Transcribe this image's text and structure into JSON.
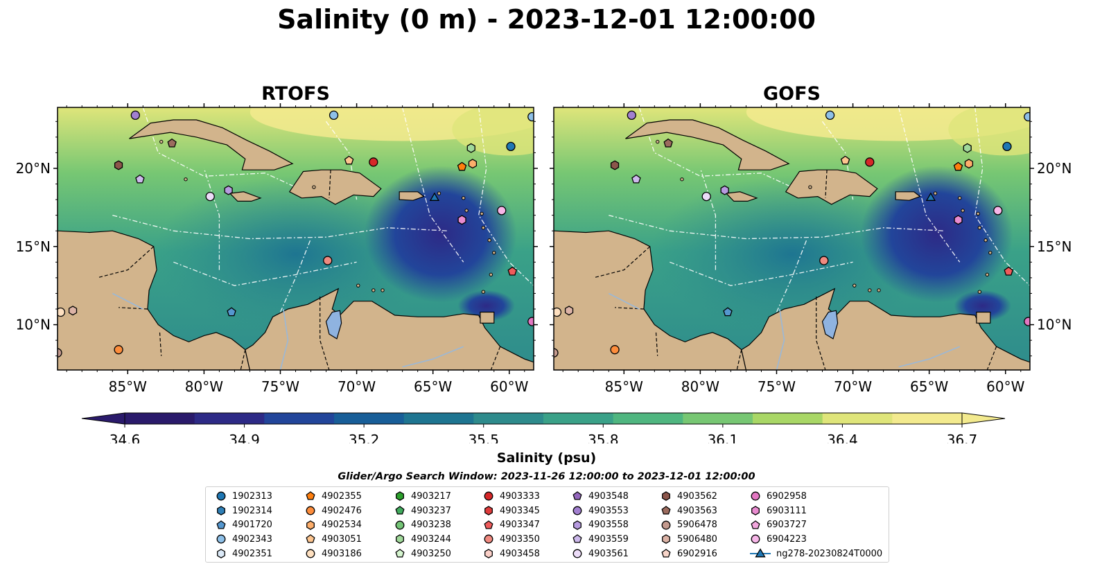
{
  "title": "Salinity (0 m) - 2023-12-01 12:00:00",
  "panels": [
    {
      "title": "RTOFS"
    },
    {
      "title": "GOFS"
    }
  ],
  "axes": {
    "x_ticks": [
      "85°W",
      "80°W",
      "75°W",
      "70°W",
      "65°W",
      "60°W"
    ],
    "y_ticks": [
      "20°N",
      "15°N",
      "10°N"
    ],
    "lon_range": [
      -89.6,
      -58.4
    ],
    "lat_range": [
      7.1,
      23.9
    ]
  },
  "colorbar": {
    "label": "Salinity (psu)",
    "min": 34.6,
    "max": 36.7,
    "extend": "both",
    "ticks": [
      "34.6",
      "34.9",
      "35.2",
      "35.5",
      "35.8",
      "36.1",
      "36.4",
      "36.7"
    ],
    "colors": [
      "#2a1a6b",
      "#2d2a86",
      "#22459a",
      "#185e98",
      "#1e7591",
      "#2e8b8c",
      "#3aa188",
      "#4fb680",
      "#77c773",
      "#a9d766",
      "#dfe57a",
      "#f3ea8e"
    ]
  },
  "search_window": "Glider/Argo Search Window: 2023-11-26 12:00:00 to 2023-12-01 12:00:00",
  "colors": {
    "land": "#d2b48c",
    "lake": "#8fb3e0",
    "ocean_low": "#2a1a6b",
    "ocean_high": "#f3ea8e"
  },
  "legend": [
    {
      "label": "1902313",
      "marker": "circle",
      "color": "#1f77b4"
    },
    {
      "label": "1902314",
      "marker": "hexagon",
      "color": "#2f7fb6"
    },
    {
      "label": "4901720",
      "marker": "pentagon",
      "color": "#5597cf"
    },
    {
      "label": "4902343",
      "marker": "circle",
      "color": "#8ec0e8"
    },
    {
      "label": "4902351",
      "marker": "hexagon",
      "color": "#dbe9f7"
    },
    {
      "label": "4902355",
      "marker": "pentagon",
      "color": "#ff7f0e"
    },
    {
      "label": "4902476",
      "marker": "circle",
      "color": "#fd8d3c"
    },
    {
      "label": "4902534",
      "marker": "hexagon",
      "color": "#fdae6b"
    },
    {
      "label": "4903051",
      "marker": "pentagon",
      "color": "#fdc58f"
    },
    {
      "label": "4903186",
      "marker": "circle",
      "color": "#fee0c0"
    },
    {
      "label": "4903217",
      "marker": "hexagon",
      "color": "#2ca02c"
    },
    {
      "label": "4903237",
      "marker": "pentagon",
      "color": "#41ab5d"
    },
    {
      "label": "4903238",
      "marker": "circle",
      "color": "#74c476"
    },
    {
      "label": "4903244",
      "marker": "hexagon",
      "color": "#a1d99b"
    },
    {
      "label": "4903250",
      "marker": "pentagon",
      "color": "#d5f5cf"
    },
    {
      "label": "4903333",
      "marker": "circle",
      "color": "#d62728"
    },
    {
      "label": "4903345",
      "marker": "hexagon",
      "color": "#e03c3c"
    },
    {
      "label": "4903347",
      "marker": "pentagon",
      "color": "#ef5b5b"
    },
    {
      "label": "4903350",
      "marker": "circle",
      "color": "#f08a80"
    },
    {
      "label": "4903458",
      "marker": "hexagon",
      "color": "#fbd0c8"
    },
    {
      "label": "4903548",
      "marker": "pentagon",
      "color": "#9467bd"
    },
    {
      "label": "4903553",
      "marker": "circle",
      "color": "#a27fd0"
    },
    {
      "label": "4903558",
      "marker": "hexagon",
      "color": "#b79be0"
    },
    {
      "label": "4903559",
      "marker": "pentagon",
      "color": "#cdb9ec"
    },
    {
      "label": "4903561",
      "marker": "circle",
      "color": "#ecdcf8"
    },
    {
      "label": "4903562",
      "marker": "hexagon",
      "color": "#8c564b"
    },
    {
      "label": "4903563",
      "marker": "pentagon",
      "color": "#9c6b5e"
    },
    {
      "label": "5906478",
      "marker": "circle",
      "color": "#c49a8e"
    },
    {
      "label": "5906480",
      "marker": "hexagon",
      "color": "#dcb3a6"
    },
    {
      "label": "6902916",
      "marker": "pentagon",
      "color": "#f7d4c8"
    },
    {
      "label": "6902958",
      "marker": "circle",
      "color": "#e377c2"
    },
    {
      "label": "6903111",
      "marker": "hexagon",
      "color": "#e98bd0"
    },
    {
      "label": "6903727",
      "marker": "pentagon",
      "color": "#f2a6dd"
    },
    {
      "label": "6904223",
      "marker": "circle",
      "color": "#f7b6e8"
    },
    {
      "label": "ng278-20230824T0000",
      "marker": "triangle-line",
      "color": "#1f77b4"
    }
  ],
  "markers": [
    {
      "lon": -84.5,
      "lat": 23.4,
      "marker": "circle",
      "color": "#a27fd0"
    },
    {
      "lon": -71.5,
      "lat": 23.4,
      "marker": "circle",
      "color": "#8ec0e8"
    },
    {
      "lon": -58.5,
      "lat": 23.3,
      "marker": "circle",
      "color": "#8ec0e8"
    },
    {
      "lon": -82.1,
      "lat": 21.6,
      "marker": "pentagon",
      "color": "#9c6b5e"
    },
    {
      "lon": -85.6,
      "lat": 20.2,
      "marker": "hexagon",
      "color": "#8c564b"
    },
    {
      "lon": -84.2,
      "lat": 19.3,
      "marker": "pentagon",
      "color": "#cdb9ec"
    },
    {
      "lon": -79.6,
      "lat": 18.2,
      "marker": "circle",
      "color": "#ecdcf8"
    },
    {
      "lon": -78.4,
      "lat": 18.6,
      "marker": "hexagon",
      "color": "#b79be0"
    },
    {
      "lon": -70.5,
      "lat": 20.5,
      "marker": "pentagon",
      "color": "#fdc58f"
    },
    {
      "lon": -68.9,
      "lat": 20.4,
      "marker": "circle",
      "color": "#d62728"
    },
    {
      "lon": -62.5,
      "lat": 21.3,
      "marker": "hexagon",
      "color": "#a1d99b"
    },
    {
      "lon": -63.1,
      "lat": 20.1,
      "marker": "pentagon",
      "color": "#ff7f0e"
    },
    {
      "lon": -62.4,
      "lat": 20.3,
      "marker": "hexagon",
      "color": "#fdae6b"
    },
    {
      "lon": -59.9,
      "lat": 21.4,
      "marker": "circle",
      "color": "#1f77b4"
    },
    {
      "lon": -60.5,
      "lat": 17.3,
      "marker": "circle",
      "color": "#f7b6e8"
    },
    {
      "lon": -63.1,
      "lat": 16.7,
      "marker": "hexagon",
      "color": "#e98bd0"
    },
    {
      "lon": -71.9,
      "lat": 14.1,
      "marker": "circle",
      "color": "#f08a80"
    },
    {
      "lon": -59.8,
      "lat": 13.4,
      "marker": "pentagon",
      "color": "#ef5b5b"
    },
    {
      "lon": -78.2,
      "lat": 10.8,
      "marker": "pentagon",
      "color": "#5597cf"
    },
    {
      "lon": -89.4,
      "lat": 10.8,
      "marker": "circle",
      "color": "#fee0c0"
    },
    {
      "lon": -88.6,
      "lat": 10.9,
      "marker": "hexagon",
      "color": "#dcb3a6"
    },
    {
      "lon": -89.6,
      "lat": 8.2,
      "marker": "circle",
      "color": "#c49a8e"
    },
    {
      "lon": -85.6,
      "lat": 8.4,
      "marker": "circle",
      "color": "#fd8d3c"
    },
    {
      "lon": -58.5,
      "lat": 10.2,
      "marker": "circle",
      "color": "#e377c2"
    },
    {
      "lon": -64.9,
      "lat": 18.1,
      "marker": "triangle",
      "color": "#1f77b4"
    }
  ]
}
